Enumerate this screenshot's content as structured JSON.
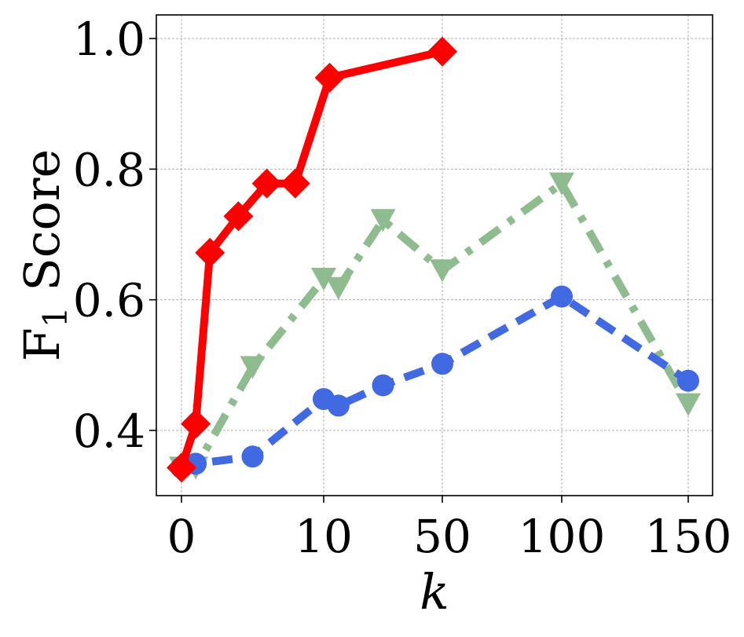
{
  "chart_data": {
    "type": "line",
    "x_ticks": [
      "0",
      "10",
      "50",
      "100",
      "150"
    ],
    "y_ticks": [
      "0.4",
      "0.6",
      "0.8",
      "1.0"
    ],
    "ylim": [
      0.3,
      1.04
    ],
    "xlabel": "k",
    "ylabel": "F1 Score",
    "grid": true,
    "series": [
      {
        "color": "#ff0000",
        "linestyle": "solid",
        "marker": "diamond",
        "points": [
          {
            "x": "0",
            "y": 0.343
          },
          {
            "x": "1",
            "y": 0.41
          },
          {
            "x": "2",
            "y": 0.672
          },
          {
            "x": "4",
            "y": 0.728
          },
          {
            "x": "6",
            "y": 0.778
          },
          {
            "x": "8",
            "y": 0.778
          },
          {
            "x": "12",
            "y": 0.94
          },
          {
            "x": "50",
            "y": 0.98
          }
        ]
      },
      {
        "color": "#8fbc8f",
        "linestyle": "dashdot",
        "marker": "triangle-down",
        "points": [
          {
            "x": "0",
            "y": 0.343
          },
          {
            "x": "1",
            "y": 0.343
          },
          {
            "x": "5",
            "y": 0.497
          },
          {
            "x": "10",
            "y": 0.632
          },
          {
            "x": "15",
            "y": 0.618
          },
          {
            "x": "30",
            "y": 0.722
          },
          {
            "x": "50",
            "y": 0.645
          },
          {
            "x": "100",
            "y": 0.778
          },
          {
            "x": "150",
            "y": 0.44
          }
        ]
      },
      {
        "color": "#4169e1",
        "linestyle": "dashed",
        "marker": "circle",
        "points": [
          {
            "x": "0",
            "y": 0.343
          },
          {
            "x": "1",
            "y": 0.349
          },
          {
            "x": "5",
            "y": 0.36
          },
          {
            "x": "10",
            "y": 0.448
          },
          {
            "x": "15",
            "y": 0.438
          },
          {
            "x": "30",
            "y": 0.469
          },
          {
            "x": "50",
            "y": 0.502
          },
          {
            "x": "100",
            "y": 0.605
          },
          {
            "x": "150",
            "y": 0.476
          }
        ]
      }
    ]
  }
}
